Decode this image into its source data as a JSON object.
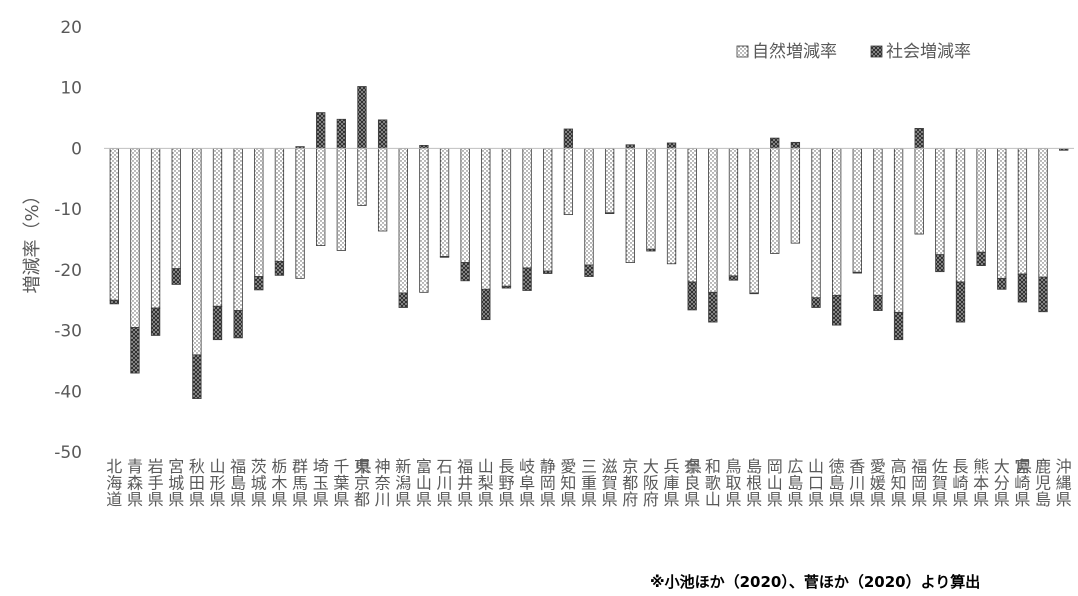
{
  "chart_data": {
    "type": "bar",
    "stacked": true,
    "ylabel": "増減率（%）",
    "ylim": [
      -50,
      20
    ],
    "yticks": [
      20,
      10,
      0,
      -10,
      -20,
      -30,
      -40,
      -50
    ],
    "grid": false,
    "legend_position": "top-right",
    "categories": [
      "北海道",
      "青森県",
      "岩手県",
      "宮城県",
      "秋田県",
      "山形県",
      "福島県",
      "茨城県",
      "栃木県",
      "群馬県",
      "埼玉県",
      "千葉県",
      "東京都",
      "神奈川県",
      "新潟県",
      "富山県",
      "石川県",
      "福井県",
      "山梨県",
      "長野県",
      "岐阜県",
      "静岡県",
      "愛知県",
      "三重県",
      "滋賀県",
      "京都府",
      "大阪府",
      "兵庫県",
      "奈良県",
      "和歌山県",
      "鳥取県",
      "島根県",
      "岡山県",
      "広島県",
      "山口県",
      "徳島県",
      "香川県",
      "愛媛県",
      "高知県",
      "福岡県",
      "佐賀県",
      "長崎県",
      "熊本県",
      "大分県",
      "宮崎県",
      "鹿児島県",
      "沖縄県"
    ],
    "series": [
      {
        "name": "自然増減率",
        "pattern": "dots",
        "values": [
          -25.0,
          -29.5,
          -26.3,
          -19.8,
          -34.0,
          -26.0,
          -26.7,
          -21.1,
          -18.6,
          -21.4,
          -16.0,
          -16.8,
          -9.4,
          -13.6,
          -23.8,
          -23.7,
          -17.8,
          -18.8,
          -23.2,
          -22.7,
          -19.7,
          -20.2,
          -10.9,
          -19.2,
          -10.6,
          -18.8,
          -16.6,
          -19.0,
          -22.0,
          -23.7,
          -21.0,
          -23.8,
          -17.3,
          -15.6,
          -24.6,
          -24.2,
          -20.4,
          -24.2,
          -27.0,
          -14.1,
          -17.5,
          -22.0,
          -17.1,
          -21.4,
          -20.7,
          -21.2,
          0.0
        ]
      },
      {
        "name": "社会増減率",
        "pattern": "crosshatch",
        "values": [
          -0.6,
          -7.5,
          -4.5,
          -2.6,
          -7.2,
          -5.5,
          -4.5,
          -2.2,
          -2.3,
          0.3,
          5.9,
          4.8,
          10.2,
          4.7,
          -2.4,
          0.5,
          -0.1,
          -3.0,
          -5.0,
          -0.3,
          -3.7,
          -0.4,
          3.2,
          -1.9,
          -0.1,
          0.6,
          -0.3,
          0.9,
          -4.6,
          -4.9,
          -0.7,
          -0.1,
          1.7,
          1.0,
          -1.6,
          -4.9,
          -0.1,
          -2.5,
          -4.5,
          3.3,
          -2.8,
          -6.6,
          -2.2,
          -1.8,
          -4.6,
          -5.7,
          -0.3
        ]
      }
    ],
    "note": "※小池ほか（2020）、菅ほか（2020）より算出"
  }
}
